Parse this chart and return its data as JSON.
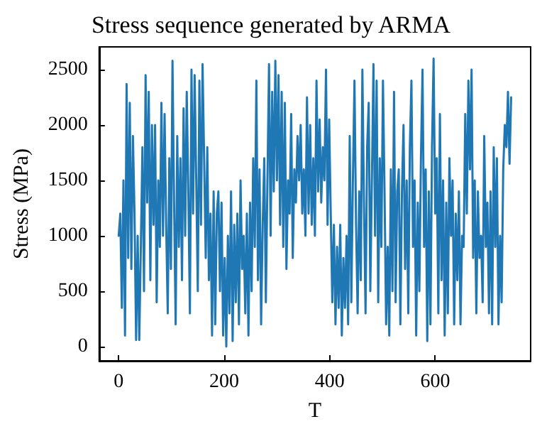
{
  "chart_data": {
    "type": "line",
    "title": "Stress sequence generated by ARMA",
    "xlabel": "T",
    "ylabel": "Stress (MPa)",
    "xlim": [
      -37,
      781
    ],
    "ylim": [
      -128,
      2705
    ],
    "xticks": [
      0,
      200,
      400,
      600
    ],
    "yticks": [
      0,
      500,
      1000,
      1500,
      2000,
      2500
    ],
    "marker": "none",
    "line_style": "solid",
    "series": [
      {
        "color": "#1f77b4",
        "x": [
          0,
          3,
          6,
          9,
          12,
          15,
          18,
          21,
          24,
          27,
          30,
          33,
          36,
          39,
          42,
          45,
          48,
          51,
          54,
          57,
          60,
          63,
          66,
          69,
          72,
          75,
          78,
          81,
          84,
          87,
          90,
          93,
          96,
          99,
          102,
          105,
          108,
          111,
          114,
          117,
          120,
          123,
          126,
          129,
          132,
          135,
          138,
          141,
          144,
          147,
          150,
          153,
          156,
          159,
          162,
          165,
          168,
          171,
          174,
          177,
          180,
          183,
          186,
          189,
          192,
          195,
          198,
          201,
          204,
          207,
          210,
          213,
          216,
          219,
          222,
          225,
          228,
          231,
          234,
          237,
          240,
          243,
          246,
          249,
          252,
          255,
          258,
          261,
          264,
          267,
          270,
          273,
          276,
          279,
          282,
          285,
          288,
          291,
          294,
          297,
          300,
          303,
          306,
          309,
          312,
          315,
          318,
          321,
          324,
          327,
          330,
          333,
          336,
          339,
          342,
          345,
          348,
          351,
          354,
          357,
          360,
          363,
          366,
          369,
          372,
          375,
          378,
          381,
          384,
          387,
          390,
          393,
          396,
          399,
          402,
          405,
          408,
          411,
          414,
          417,
          420,
          423,
          426,
          429,
          432,
          435,
          438,
          441,
          444,
          447,
          450,
          453,
          456,
          459,
          462,
          465,
          468,
          471,
          474,
          477,
          480,
          483,
          486,
          489,
          492,
          495,
          498,
          501,
          504,
          507,
          510,
          513,
          516,
          519,
          522,
          525,
          528,
          531,
          534,
          537,
          540,
          543,
          546,
          549,
          552,
          555,
          558,
          561,
          564,
          567,
          570,
          573,
          576,
          579,
          582,
          585,
          588,
          591,
          594,
          597,
          600,
          603,
          606,
          609,
          612,
          615,
          618,
          621,
          624,
          627,
          630,
          633,
          636,
          639,
          642,
          645,
          648,
          651,
          654,
          657,
          660,
          663,
          666,
          669,
          672,
          675,
          678,
          681,
          684,
          687,
          690,
          693,
          696,
          699,
          702,
          705,
          708,
          711,
          714,
          717,
          720,
          723,
          726,
          729,
          732,
          735,
          738,
          741,
          744
        ],
        "values": [
          1000,
          1200,
          350,
          1500,
          100,
          2370,
          800,
          2200,
          700,
          1900,
          1200,
          60,
          1000,
          60,
          900,
          1800,
          500,
          2450,
          1300,
          2300,
          600,
          2000,
          1100,
          2000,
          400,
          1500,
          900,
          2200,
          1000,
          2100,
          1100,
          300,
          1700,
          700,
          2580,
          1300,
          200,
          1900,
          900,
          1700,
          600,
          2150,
          1000,
          2300,
          1400,
          300,
          2500,
          1200,
          2450,
          1500,
          500,
          2400,
          1100,
          2550,
          1700,
          800,
          1800,
          600,
          1200,
          100,
          1400,
          200,
          1200,
          1400,
          500,
          1300,
          100,
          800,
          0,
          1000,
          300,
          1400,
          50,
          1100,
          400,
          1200,
          200,
          1500,
          700,
          1000,
          300,
          1200,
          100,
          1300,
          500,
          1700,
          900,
          2400,
          600,
          1600,
          200,
          1100,
          1700,
          400,
          1500,
          2550,
          1000,
          2300,
          1400,
          2580,
          1500,
          2450,
          1100,
          2300,
          900,
          2200,
          700,
          1500,
          1200,
          2100,
          800,
          1600,
          1300,
          1900,
          1500,
          2000,
          1200,
          1600,
          1000,
          2250,
          1200,
          2000,
          1100,
          1700,
          1000,
          2400,
          1400,
          2050,
          1300,
          1800,
          1500,
          2500,
          1100,
          2050,
          1200,
          400,
          1100,
          200,
          900,
          350,
          1100,
          100,
          800,
          350,
          1000,
          200,
          1900,
          400,
          1500,
          2400,
          1100,
          300,
          1400,
          600,
          2500,
          1300,
          300,
          1800,
          2200,
          500,
          1500,
          2550,
          1000,
          2400,
          400,
          1700,
          900,
          2400,
          1400,
          200,
          900,
          100,
          1600,
          500,
          2300,
          400,
          1400,
          1600,
          200,
          1400,
          2000,
          700,
          1500,
          300,
          1800,
          2400,
          900,
          1500,
          100,
          1300,
          500,
          1700,
          2500,
          900,
          1600,
          50,
          1400,
          200,
          1800,
          2600,
          1200,
          1700,
          300,
          2100,
          600,
          1500,
          100,
          1300,
          300,
          1700,
          1000,
          1500,
          200,
          1200,
          600,
          1400,
          200,
          1000,
          900,
          2100,
          1200,
          2400,
          1600,
          2500,
          800,
          1500,
          300,
          1400,
          800,
          1000,
          400,
          1900,
          900,
          1300,
          300,
          1400,
          200,
          1800,
          900,
          1700,
          200,
          1000,
          400,
          1600,
          2000,
          1800,
          2300,
          1650,
          2250
        ]
      }
    ]
  }
}
